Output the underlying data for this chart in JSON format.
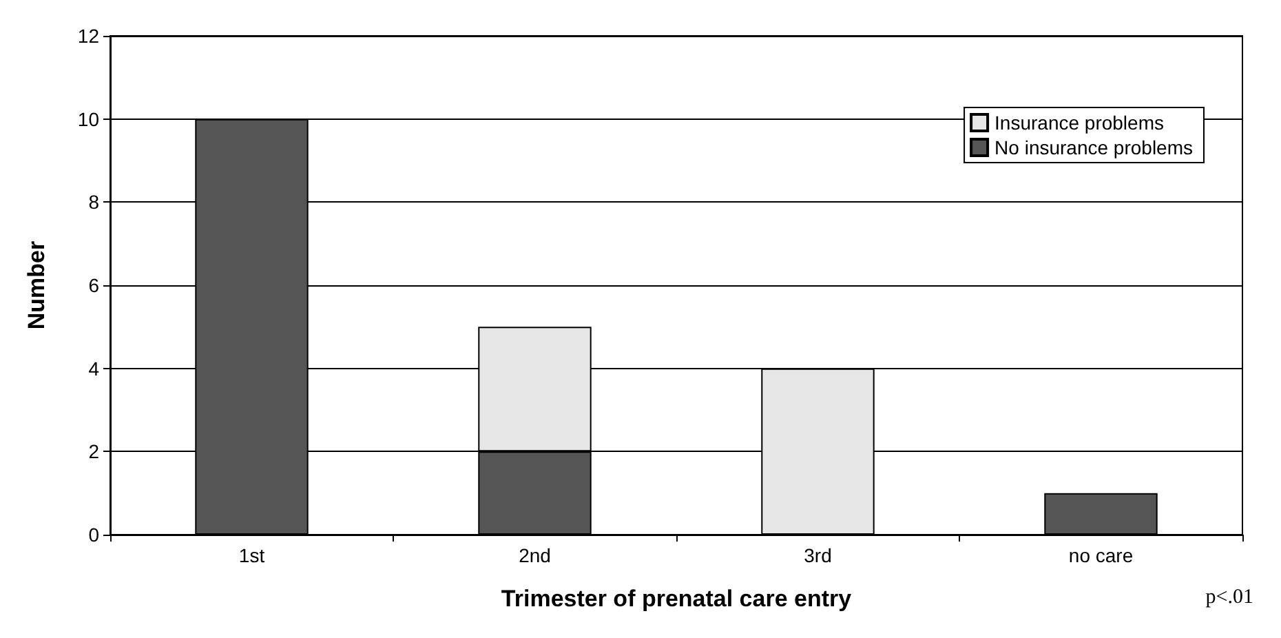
{
  "chart_data": {
    "type": "bar",
    "stacked": true,
    "xlabel": "Trimester of prenatal care entry",
    "ylabel": "Number",
    "categories": [
      "1st",
      "2nd",
      "3rd",
      "no care"
    ],
    "series": [
      {
        "name": "No insurance problems",
        "color": "#555555",
        "values": [
          10,
          2,
          0,
          1
        ]
      },
      {
        "name": "Insurance problems",
        "color": "#e6e6e6",
        "values": [
          0,
          3,
          4,
          0
        ]
      }
    ],
    "ylim": [
      0,
      12
    ],
    "yticks": [
      0,
      2,
      4,
      6,
      8,
      10,
      12
    ],
    "grid": "y",
    "legend": "top right",
    "annotations": [
      "p<.01"
    ]
  }
}
